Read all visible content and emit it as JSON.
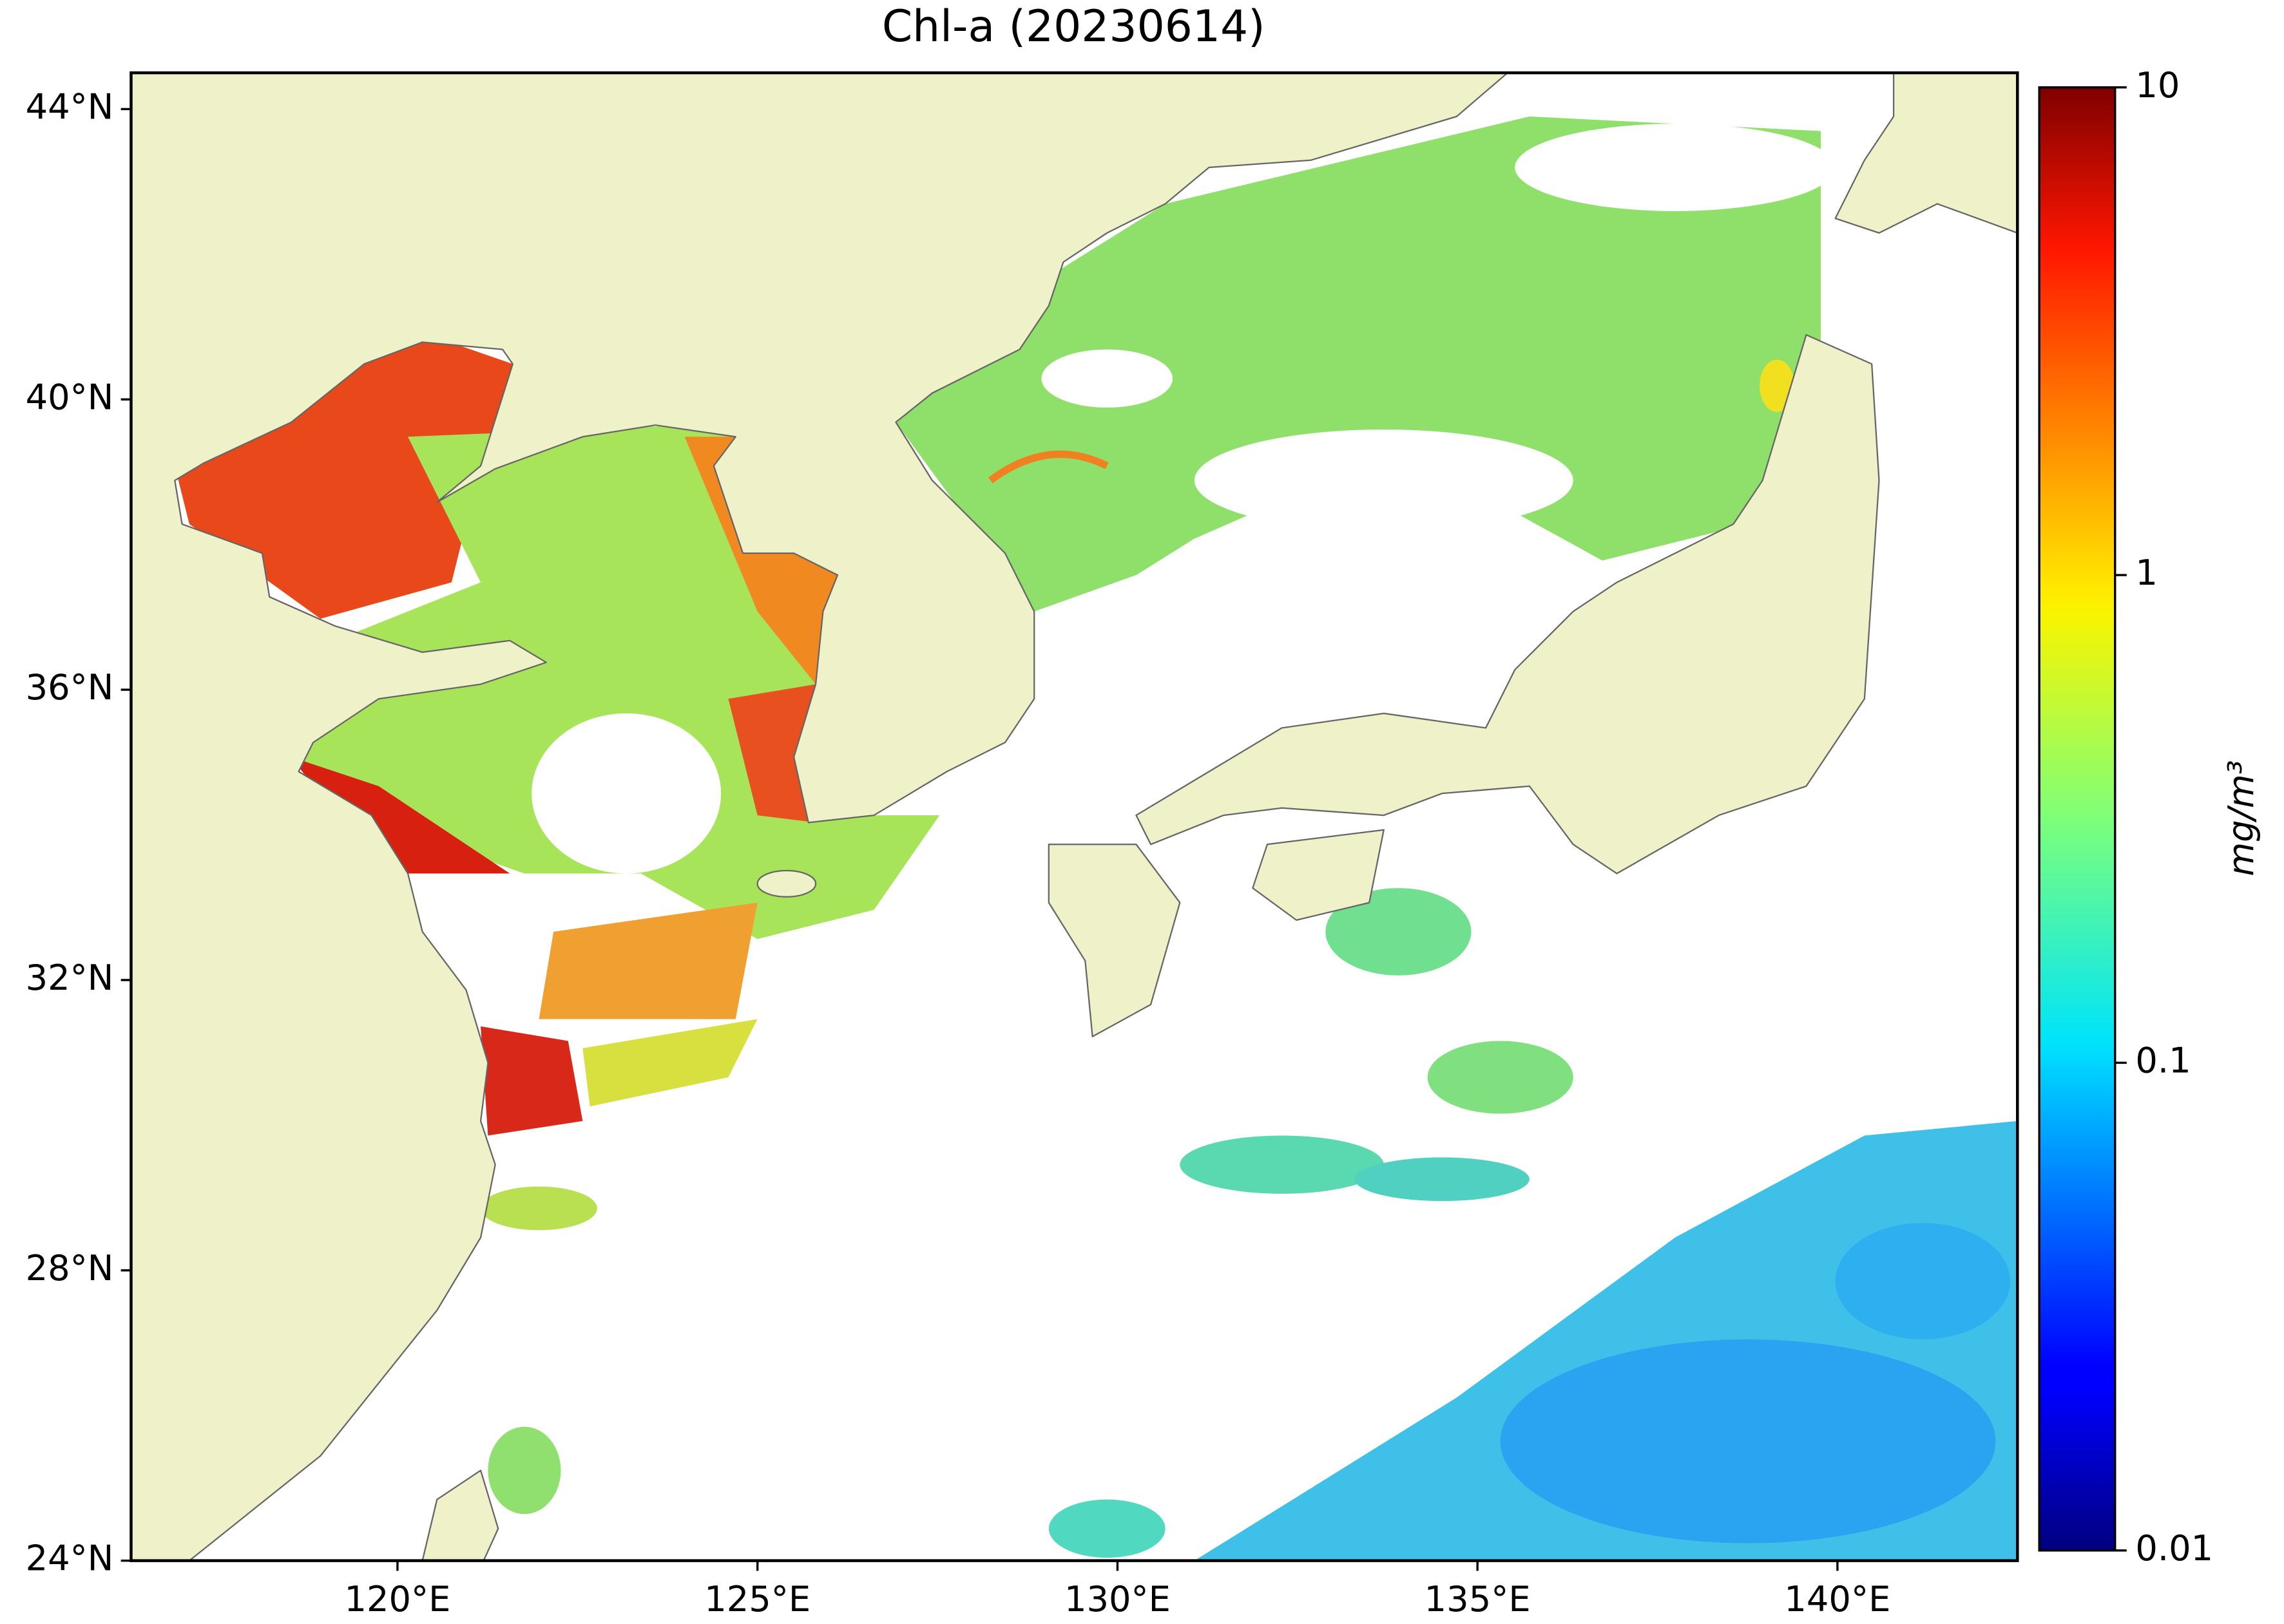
{
  "chart_data": {
    "type": "map",
    "title": "Chl-a (20230614)",
    "xlim": [
      116.3,
      142.5
    ],
    "ylim": [
      24,
      44.5
    ],
    "xticks": [
      {
        "value": 120,
        "label": "120°E"
      },
      {
        "value": 125,
        "label": "125°E"
      },
      {
        "value": 130,
        "label": "130°E"
      },
      {
        "value": 135,
        "label": "135°E"
      },
      {
        "value": 140,
        "label": "140°E"
      }
    ],
    "yticks": [
      {
        "value": 24,
        "label": "24°N"
      },
      {
        "value": 28,
        "label": "28°N"
      },
      {
        "value": 32,
        "label": "32°N"
      },
      {
        "value": 36,
        "label": "36°N"
      },
      {
        "value": 40,
        "label": "40°N"
      },
      {
        "value": 44,
        "label": "44°N"
      }
    ],
    "land_color": "#eff2c8",
    "colorbar": {
      "label": "mg/m³",
      "scale": "log",
      "colormap": "jet",
      "lim": [
        0.01,
        10
      ],
      "ticks": [
        0.01,
        0.1,
        1,
        10
      ]
    }
  }
}
